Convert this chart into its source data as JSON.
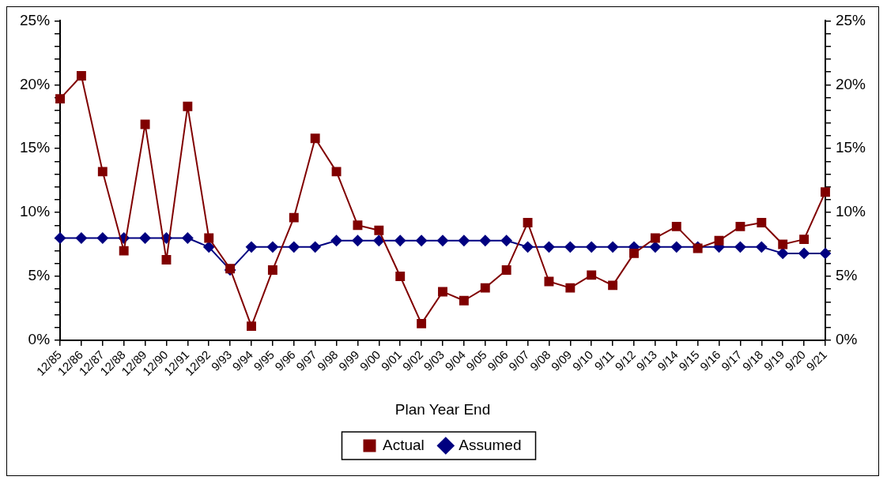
{
  "chart_data": {
    "type": "line",
    "xlabel": "Plan Year End",
    "categories": [
      "12/85",
      "12/86",
      "12/87",
      "12/88",
      "12/89",
      "12/90",
      "12/91",
      "12/92",
      "9/93",
      "9/94",
      "9/95",
      "9/96",
      "9/97",
      "9/98",
      "9/99",
      "9/00",
      "9/01",
      "9/02",
      "9/03",
      "9/04",
      "9/05",
      "9/06",
      "9/07",
      "9/08",
      "9/09",
      "9/10",
      "9/11",
      "9/12",
      "9/13",
      "9/14",
      "9/15",
      "9/16",
      "9/17",
      "9/18",
      "9/19",
      "9/20",
      "9/21"
    ],
    "series": [
      {
        "name": "Actual",
        "color": "#800000",
        "marker": "square",
        "values": [
          18.9,
          20.7,
          13.2,
          7.0,
          16.9,
          6.3,
          18.3,
          8.0,
          5.6,
          1.1,
          5.5,
          9.6,
          15.8,
          13.2,
          9.0,
          8.6,
          5.0,
          1.3,
          3.8,
          3.1,
          4.1,
          5.5,
          9.2,
          4.6,
          4.1,
          5.1,
          4.3,
          6.8,
          8.0,
          8.9,
          7.2,
          7.8,
          8.9,
          9.2,
          7.5,
          7.9,
          11.6
        ]
      },
      {
        "name": "Assumed",
        "color": "#000080",
        "marker": "diamond",
        "values": [
          8.0,
          8.0,
          8.0,
          8.0,
          8.0,
          8.0,
          8.0,
          7.3,
          5.5,
          7.3,
          7.3,
          7.3,
          7.3,
          7.8,
          7.8,
          7.8,
          7.8,
          7.8,
          7.8,
          7.8,
          7.8,
          7.8,
          7.3,
          7.3,
          7.3,
          7.3,
          7.3,
          7.3,
          7.3,
          7.3,
          7.3,
          7.3,
          7.3,
          7.3,
          6.8,
          6.8,
          6.8
        ]
      }
    ],
    "ylim": [
      0,
      25
    ],
    "yticks": [
      {
        "value": 0,
        "label": "0%"
      },
      {
        "value": 1,
        "label": null
      },
      {
        "value": 2,
        "label": null
      },
      {
        "value": 3,
        "label": null
      },
      {
        "value": 4,
        "label": null
      },
      {
        "value": 5,
        "label": "5%"
      },
      {
        "value": 6,
        "label": null
      },
      {
        "value": 7,
        "label": null
      },
      {
        "value": 8,
        "label": null
      },
      {
        "value": 9,
        "label": null
      },
      {
        "value": 10,
        "label": "10%"
      },
      {
        "value": 11,
        "label": null
      },
      {
        "value": 12,
        "label": null
      },
      {
        "value": 13,
        "label": null
      },
      {
        "value": 14,
        "label": null
      },
      {
        "value": 15,
        "label": "15%"
      },
      {
        "value": 16,
        "label": null
      },
      {
        "value": 17,
        "label": null
      },
      {
        "value": 18,
        "label": null
      },
      {
        "value": 19,
        "label": null
      },
      {
        "value": 20,
        "label": "20%"
      },
      {
        "value": 21,
        "label": null
      },
      {
        "value": 22,
        "label": null
      },
      {
        "value": 23,
        "label": null
      },
      {
        "value": 24,
        "label": null
      },
      {
        "value": 25,
        "label": "25%"
      }
    ],
    "y2lim": [
      0,
      25
    ],
    "y2ticks": [
      {
        "value": 0,
        "label": "0%"
      },
      {
        "value": 1,
        "label": null
      },
      {
        "value": 2,
        "label": null
      },
      {
        "value": 3,
        "label": null
      },
      {
        "value": 4,
        "label": null
      },
      {
        "value": 5,
        "label": "5%"
      },
      {
        "value": 6,
        "label": null
      },
      {
        "value": 7,
        "label": null
      },
      {
        "value": 8,
        "label": null
      },
      {
        "value": 9,
        "label": null
      },
      {
        "value": 10,
        "label": "10%"
      },
      {
        "value": 11,
        "label": null
      },
      {
        "value": 12,
        "label": null
      },
      {
        "value": 13,
        "label": null
      },
      {
        "value": 14,
        "label": null
      },
      {
        "value": 15,
        "label": "15%"
      },
      {
        "value": 16,
        "label": null
      },
      {
        "value": 17,
        "label": null
      },
      {
        "value": 18,
        "label": null
      },
      {
        "value": 19,
        "label": null
      },
      {
        "value": 20,
        "label": "20%"
      },
      {
        "value": 21,
        "label": null
      },
      {
        "value": 22,
        "label": null
      },
      {
        "value": 23,
        "label": null
      },
      {
        "value": 24,
        "label": null
      },
      {
        "value": 25,
        "label": "25%"
      }
    ],
    "grid": false,
    "legend": "bottom",
    "line_style": "solid"
  }
}
